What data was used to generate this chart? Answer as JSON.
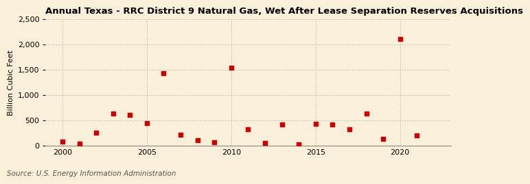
{
  "title": "Annual Texas - RRC District 9 Natural Gas, Wet After Lease Separation Reserves Acquisitions",
  "ylabel": "Billion Cubic Feet",
  "source": "Source: U.S. Energy Information Administration",
  "background_color": "#faefd9",
  "marker_color": "#cc0000",
  "years": [
    2000,
    2001,
    2002,
    2003,
    2004,
    2005,
    2006,
    2007,
    2008,
    2009,
    2010,
    2011,
    2012,
    2013,
    2014,
    2015,
    2016,
    2017,
    2018,
    2019,
    2020,
    2021
  ],
  "values": [
    80,
    30,
    250,
    630,
    610,
    440,
    1430,
    210,
    100,
    60,
    1540,
    320,
    50,
    420,
    25,
    430,
    410,
    315,
    630,
    130,
    2110,
    200
  ],
  "ylim": [
    0,
    2500
  ],
  "yticks": [
    0,
    500,
    1000,
    1500,
    2000,
    2500
  ],
  "xlim": [
    1999,
    2023
  ],
  "xticks": [
    2000,
    2005,
    2010,
    2015,
    2020
  ],
  "grid_color": "#aaaaaa",
  "title_fontsize": 9.5,
  "label_fontsize": 8,
  "tick_fontsize": 8,
  "source_fontsize": 7.5
}
